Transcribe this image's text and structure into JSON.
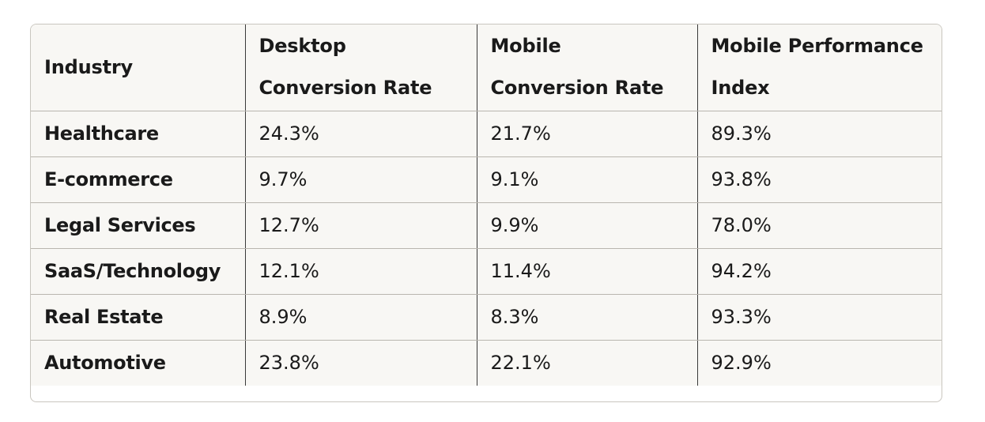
{
  "table": {
    "headers": [
      [
        "Industry"
      ],
      [
        "Desktop",
        "Conversion Rate"
      ],
      [
        "Mobile",
        "Conversion Rate"
      ],
      [
        "Mobile Performance",
        "Index"
      ]
    ],
    "rows": [
      [
        "Healthcare",
        "24.3%",
        "21.7%",
        "89.3%"
      ],
      [
        "E-commerce",
        "9.7%",
        "9.1%",
        "93.8%"
      ],
      [
        "Legal Services",
        "12.7%",
        "9.9%",
        "78.0%"
      ],
      [
        "SaaS/Technology",
        "12.1%",
        "11.4%",
        "94.2%"
      ],
      [
        "Real Estate",
        "8.9%",
        "8.3%",
        "93.3%"
      ],
      [
        "Automotive",
        "23.8%",
        "22.1%",
        "92.9%"
      ]
    ]
  }
}
